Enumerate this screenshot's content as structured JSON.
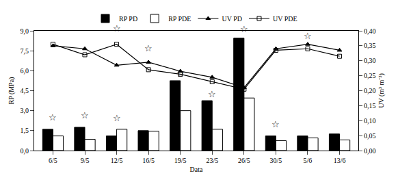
{
  "chart_data": {
    "type": "bar",
    "x_label": "Data",
    "y_label": "RP (MPa)",
    "y2_label": "UV (m³ m⁻³)",
    "categories": [
      "6/5",
      "9/5",
      "12/5",
      "16/5",
      "19/5",
      "23/5",
      "26/5",
      "30/5",
      "5/6",
      "13/6"
    ],
    "series": [
      {
        "name": "RP PD",
        "type": "bar",
        "color": "#000000",
        "values": [
          1.6,
          1.75,
          1.1,
          1.5,
          5.25,
          3.75,
          8.45,
          1.1,
          1.1,
          1.25
        ]
      },
      {
        "name": "RP PDE",
        "type": "bar",
        "color": "#ffffff",
        "values": [
          1.1,
          0.85,
          1.6,
          1.45,
          3.0,
          1.6,
          3.95,
          0.75,
          0.95,
          0.8
        ]
      },
      {
        "name": "UV PD",
        "type": "line",
        "axis": "y2",
        "color": "#000000",
        "marker": "triangle-up",
        "line_style": "solid",
        "values": [
          0.35,
          0.34,
          0.285,
          0.295,
          0.265,
          0.245,
          0.21,
          0.34,
          0.355,
          0.335
        ]
      },
      {
        "name": "UV PDE",
        "type": "line",
        "axis": "y2",
        "color": "#000000",
        "marker": "square-open",
        "line_style": "solid",
        "values": [
          0.355,
          0.32,
          0.355,
          0.27,
          0.255,
          0.23,
          0.205,
          0.335,
          0.34,
          0.315
        ]
      }
    ],
    "ylim": [
      0,
      9
    ],
    "yticks": [
      {
        "value": 0,
        "label": "0,0"
      },
      {
        "value": 1.5,
        "label": "1,5"
      },
      {
        "value": 3,
        "label": "3,0"
      },
      {
        "value": 4.5,
        "label": "4,5"
      },
      {
        "value": 6,
        "label": "6,0"
      },
      {
        "value": 7.5,
        "label": "7,5"
      },
      {
        "value": 9,
        "label": "9,0"
      }
    ],
    "y2lim": [
      0,
      0.4
    ],
    "y2ticks": [
      {
        "value": 0,
        "label": "0,00"
      },
      {
        "value": 0.05,
        "label": "0,05"
      },
      {
        "value": 0.1,
        "label": "0,10"
      },
      {
        "value": 0.15,
        "label": "0,15"
      },
      {
        "value": 0.2,
        "label": "0,20"
      },
      {
        "value": 0.25,
        "label": "0,25"
      },
      {
        "value": 0.3,
        "label": "0,30"
      },
      {
        "value": 0.35,
        "label": "0,35"
      },
      {
        "value": 0.4,
        "label": "0,40"
      }
    ],
    "annotations": [
      {
        "x": "6/5",
        "y": 2.0,
        "text": "☆"
      },
      {
        "x": "9/5",
        "y": 2.15,
        "text": "☆"
      },
      {
        "x": "12/5",
        "y": 1.95,
        "text": "☆"
      },
      {
        "x": "12/5",
        "y": 8.7,
        "text": "☆"
      },
      {
        "x": "16/5",
        "y": 7.2,
        "text": "☆"
      },
      {
        "x": "19/5",
        "y": 5.3,
        "text": "☆"
      },
      {
        "x": "23/5",
        "y": 3.75,
        "text": "☆"
      },
      {
        "x": "26/5",
        "y": 8.65,
        "text": "☆"
      },
      {
        "x": "30/5",
        "y": 1.5,
        "text": "☆"
      },
      {
        "x": "5/6",
        "y": 8.15,
        "text": "☆"
      }
    ],
    "grid": false,
    "legend": "top"
  }
}
